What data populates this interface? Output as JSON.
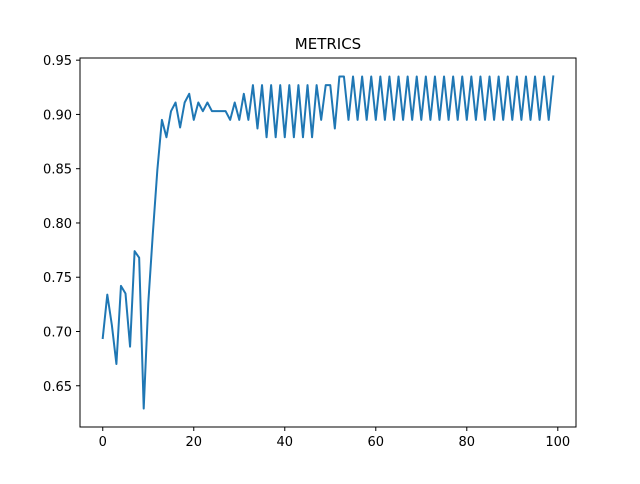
{
  "chart_data": {
    "type": "line",
    "title": "METRICS",
    "xlabel": "",
    "ylabel": "",
    "xlim": [
      -5,
      104
    ],
    "ylim": [
      0.612,
      0.952
    ],
    "xticks": [
      0,
      20,
      40,
      60,
      80,
      100
    ],
    "yticks": [
      0.65,
      0.7,
      0.75,
      0.8,
      0.85,
      0.9,
      0.95
    ],
    "xtick_labels": [
      "0",
      "20",
      "40",
      "60",
      "80",
      "100"
    ],
    "ytick_labels": [
      "0.65",
      "0.70",
      "0.75",
      "0.80",
      "0.85",
      "0.90",
      "0.95"
    ],
    "grid": false,
    "legend": "none",
    "series": [
      {
        "color": "#1f77b4",
        "x": [
          0,
          1,
          2,
          3,
          4,
          5,
          6,
          7,
          8,
          9,
          10,
          11,
          12,
          13,
          14,
          15,
          16,
          17,
          18,
          19,
          20,
          21,
          22,
          23,
          24,
          25,
          26,
          27,
          28,
          29,
          30,
          31,
          32,
          33,
          34,
          35,
          36,
          37,
          38,
          39,
          40,
          41,
          42,
          43,
          44,
          45,
          46,
          47,
          48,
          49,
          50,
          51,
          52,
          53,
          54,
          55,
          56,
          57,
          58,
          59,
          60,
          61,
          62,
          63,
          64,
          65,
          66,
          67,
          68,
          69,
          70,
          71,
          72,
          73,
          74,
          75,
          76,
          77,
          78,
          79,
          80,
          81,
          82,
          83,
          84,
          85,
          86,
          87,
          88,
          89,
          90,
          91,
          92,
          93,
          94,
          95,
          96,
          97,
          98,
          99
        ],
        "values": [
          0.694,
          0.734,
          0.706,
          0.67,
          0.742,
          0.735,
          0.686,
          0.774,
          0.768,
          0.629,
          0.726,
          0.79,
          0.849,
          0.895,
          0.879,
          0.903,
          0.911,
          0.888,
          0.911,
          0.919,
          0.895,
          0.911,
          0.903,
          0.911,
          0.903,
          0.903,
          0.903,
          0.903,
          0.895,
          0.911,
          0.895,
          0.919,
          0.895,
          0.927,
          0.887,
          0.927,
          0.879,
          0.927,
          0.879,
          0.927,
          0.879,
          0.927,
          0.879,
          0.927,
          0.879,
          0.927,
          0.879,
          0.927,
          0.895,
          0.927,
          0.927,
          0.887,
          0.935,
          0.935,
          0.895,
          0.935,
          0.895,
          0.935,
          0.895,
          0.935,
          0.895,
          0.935,
          0.895,
          0.935,
          0.895,
          0.935,
          0.895,
          0.935,
          0.895,
          0.935,
          0.895,
          0.935,
          0.895,
          0.935,
          0.895,
          0.935,
          0.895,
          0.935,
          0.895,
          0.935,
          0.895,
          0.935,
          0.895,
          0.935,
          0.895,
          0.935,
          0.895,
          0.935,
          0.895,
          0.935,
          0.895,
          0.935,
          0.895,
          0.935,
          0.895,
          0.935,
          0.895,
          0.935,
          0.895,
          0.935
        ]
      }
    ]
  }
}
